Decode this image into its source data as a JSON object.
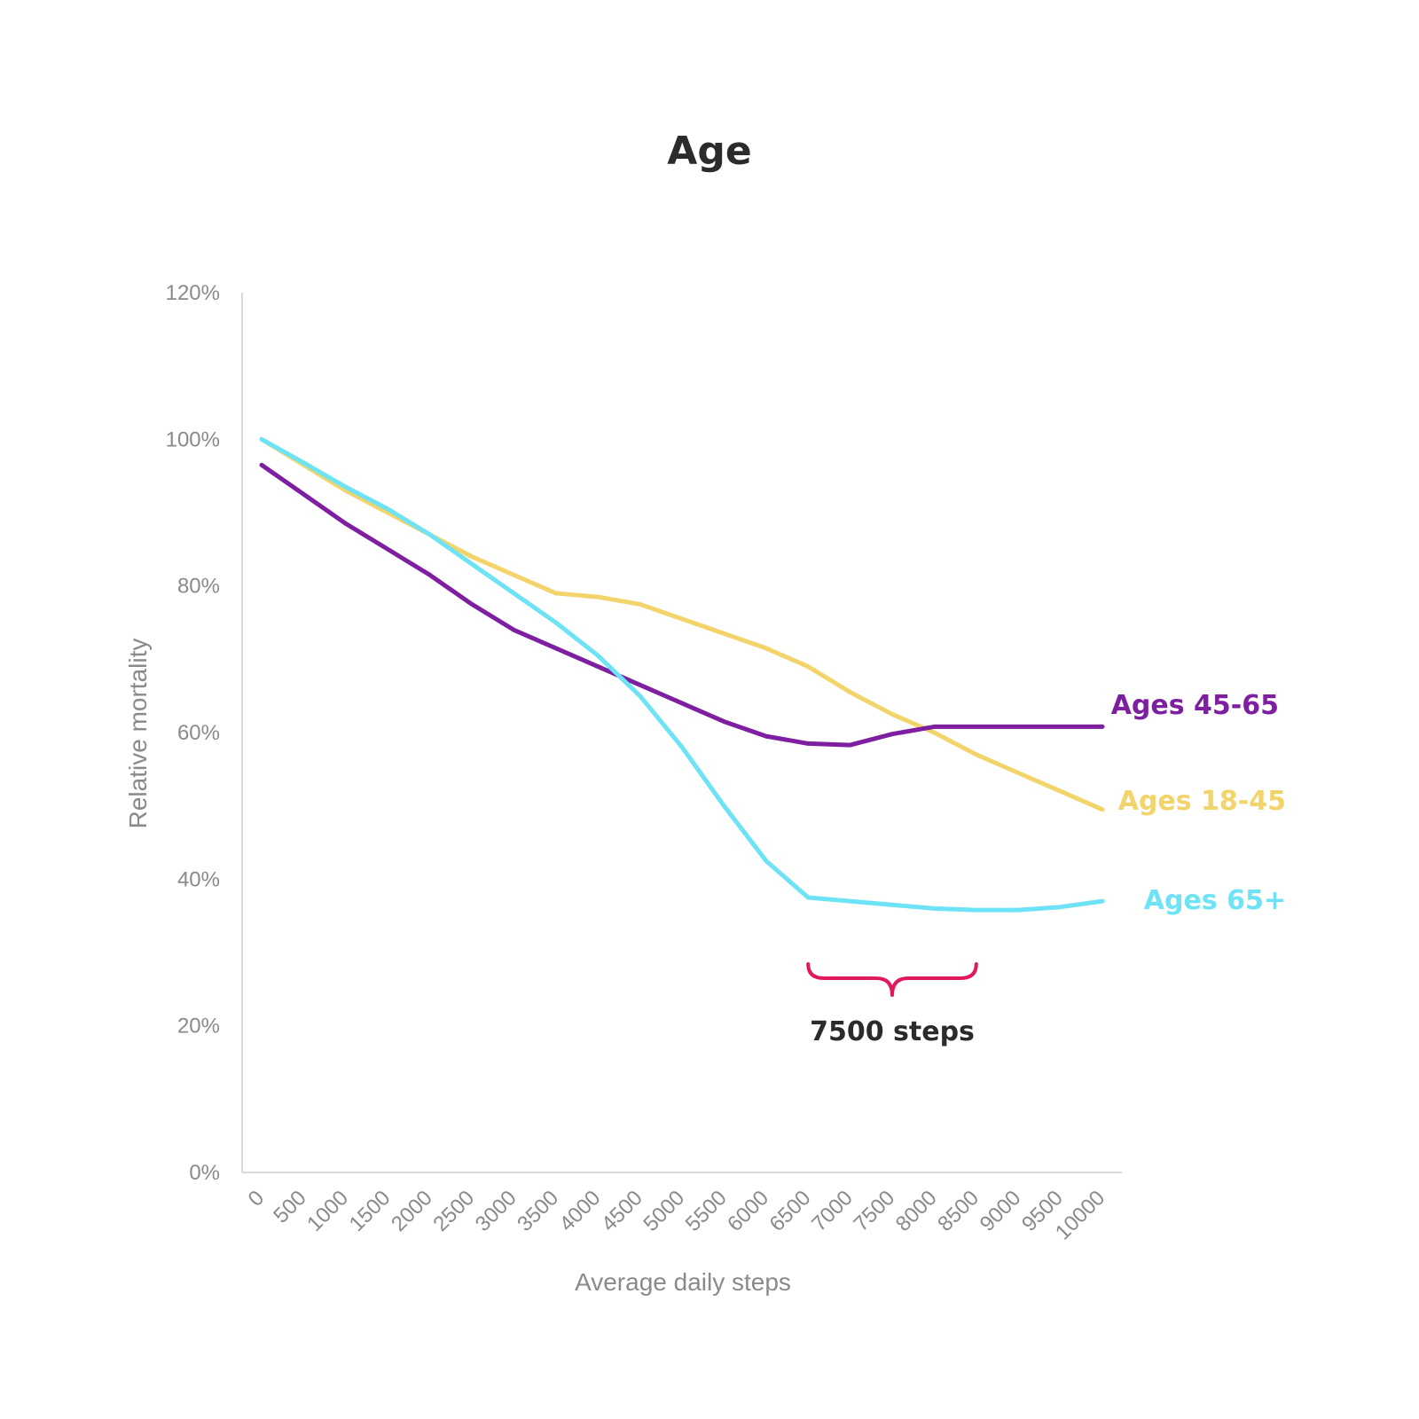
{
  "chart_data": {
    "type": "line",
    "title": "Age",
    "xlabel": "Average daily steps",
    "ylabel": "Relative mortality",
    "categories": [
      "0",
      "500",
      "1000",
      "1500",
      "2000",
      "2500",
      "3000",
      "3500",
      "4000",
      "4500",
      "5000",
      "5500",
      "6000",
      "6500",
      "7000",
      "7500",
      "8000",
      "8500",
      "9000",
      "9500",
      "10000"
    ],
    "yticks": [
      "0%",
      "20%",
      "40%",
      "60%",
      "80%",
      "100%",
      "120%"
    ],
    "ylim": [
      0,
      120
    ],
    "grid": false,
    "legend": "inline labels at line ends (right)",
    "series": [
      {
        "name": "Ages 18-45",
        "color": "#F2D46B",
        "values": [
          100,
          96.5,
          93,
          90,
          87,
          84,
          81.5,
          79,
          78.5,
          77.5,
          75.5,
          73.5,
          71.5,
          69,
          65.5,
          62.5,
          60,
          57,
          54.5,
          52,
          49.5
        ]
      },
      {
        "name": "Ages 45-65",
        "color": "#7E1FA1",
        "values": [
          96.5,
          92.5,
          88.5,
          85,
          81.5,
          77.5,
          74,
          71.5,
          69,
          66.5,
          64,
          61.5,
          59.5,
          58.5,
          58.3,
          59.8,
          60.8,
          60.8,
          60.8,
          60.8,
          60.8
        ]
      },
      {
        "name": "Ages 65+",
        "color": "#6EE3F5",
        "values": [
          100,
          96.8,
          93.5,
          90.5,
          87,
          83,
          79,
          75,
          70.5,
          65,
          58,
          50,
          42.5,
          37.5,
          37,
          36.5,
          36,
          35.8,
          35.8,
          36.2,
          37
        ]
      }
    ],
    "annotation": {
      "text": "7500 steps",
      "bracket_from": "6500",
      "bracket_to": "8500",
      "color": "#E0195F"
    }
  }
}
